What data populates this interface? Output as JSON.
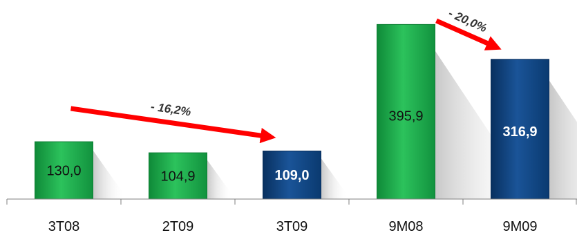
{
  "chart_data": {
    "type": "bar",
    "categories": [
      "3T08",
      "2T09",
      "3T09",
      "9M08",
      "9M09"
    ],
    "values": [
      130.0,
      104.9,
      109.0,
      395.9,
      316.9
    ],
    "value_labels": [
      "130,0",
      "104,9",
      "109,0",
      "395,9",
      "316,9"
    ],
    "bar_colors": [
      "#1aa84a",
      "#1aa84a",
      "#0c3d78",
      "#1aa84a",
      "#0c3d78"
    ],
    "value_label_bold": [
      false,
      false,
      true,
      false,
      true
    ],
    "title": "",
    "xlabel": "",
    "ylabel": "",
    "ylim": [
      0,
      420
    ],
    "grid": false,
    "annotations": [
      {
        "text": "- 16,2%",
        "from": "3T08",
        "to": "3T09",
        "color": "#ff0000"
      },
      {
        "text": "- 20,0%",
        "from": "9M08",
        "to": "9M09",
        "color": "#ff0000"
      }
    ]
  }
}
